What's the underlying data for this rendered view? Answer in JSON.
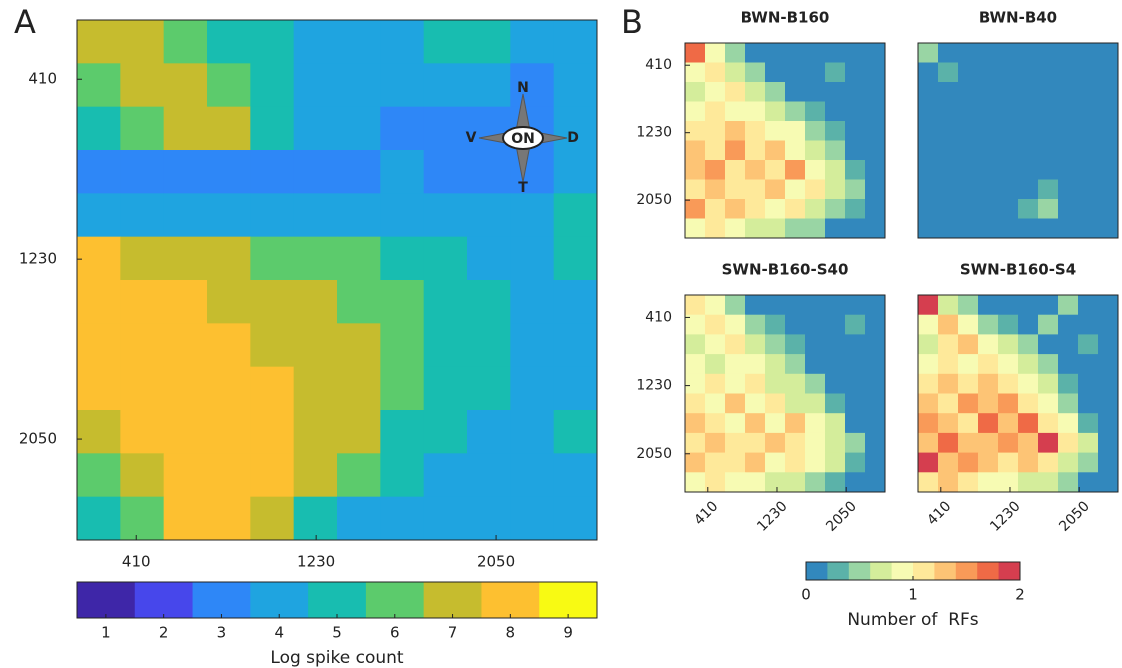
{
  "chart_data": [
    {
      "type": "heatmap",
      "panel_label": "A",
      "xlim": [
        140,
        2510
      ],
      "ylim": [
        140,
        2510
      ],
      "xticks": [
        410,
        1230,
        2050
      ],
      "yticks": [
        410,
        1230,
        2050
      ],
      "values": [
        [
          7,
          7,
          6,
          5,
          5,
          4,
          4,
          4,
          5,
          5,
          4,
          4
        ],
        [
          6,
          7,
          7,
          6,
          5,
          4,
          4,
          4,
          4,
          4,
          3,
          4
        ],
        [
          5,
          6,
          7,
          7,
          5,
          4,
          4,
          3,
          3,
          3,
          3,
          4
        ],
        [
          3,
          3,
          3,
          3,
          3,
          3,
          3,
          4,
          3,
          3,
          3,
          4
        ],
        [
          4,
          4,
          4,
          4,
          4,
          4,
          4,
          4,
          4,
          4,
          4,
          5
        ],
        [
          8,
          7,
          7,
          7,
          6,
          6,
          6,
          5,
          5,
          4,
          4,
          5
        ],
        [
          8,
          8,
          8,
          7,
          7,
          7,
          6,
          6,
          5,
          5,
          4,
          4
        ],
        [
          8,
          8,
          8,
          8,
          7,
          7,
          7,
          6,
          5,
          5,
          4,
          4
        ],
        [
          8,
          8,
          8,
          8,
          8,
          7,
          7,
          6,
          5,
          5,
          4,
          4
        ],
        [
          7,
          8,
          8,
          8,
          8,
          7,
          7,
          5,
          5,
          4,
          4,
          5
        ],
        [
          6,
          7,
          8,
          8,
          8,
          7,
          6,
          5,
          4,
          4,
          4,
          4
        ],
        [
          5,
          6,
          8,
          8,
          7,
          5,
          4,
          4,
          4,
          4,
          4,
          4
        ]
      ],
      "compass": {
        "north": "N",
        "south": "T",
        "west": "V",
        "east": "D",
        "center": "ON"
      },
      "colorbar": {
        "label": "Log spike count",
        "lim": [
          0.5,
          9.5
        ],
        "ticks": [
          1,
          2,
          3,
          4,
          5,
          6,
          7,
          8,
          9
        ],
        "colors": [
          "#3e26a8",
          "#4747eb",
          "#2e87f7",
          "#1fa4e0",
          "#18bdb0",
          "#5ccb6c",
          "#c6bc2e",
          "#fdc030",
          "#f8fa13"
        ]
      }
    },
    {
      "type": "heatmap",
      "panel_label": "B",
      "title": "BWN-B160",
      "xlim": [
        140,
        2510
      ],
      "ylim": [
        140,
        2510
      ],
      "yticks": [
        410,
        1230,
        2050
      ],
      "values": [
        [
          1.6,
          0.8,
          0.4,
          0,
          0,
          0,
          0,
          0,
          0,
          0
        ],
        [
          0.8,
          1,
          0.6,
          0.4,
          0,
          0,
          0,
          0.2,
          0,
          0
        ],
        [
          0.6,
          0.8,
          1,
          0.6,
          0.4,
          0,
          0,
          0,
          0,
          0
        ],
        [
          0.8,
          1,
          0.8,
          0.8,
          0.6,
          0.4,
          0.2,
          0,
          0,
          0
        ],
        [
          1,
          1,
          1.2,
          1,
          0.8,
          0.8,
          0.4,
          0.2,
          0,
          0
        ],
        [
          1.2,
          1,
          1.4,
          1,
          1.2,
          0.8,
          0.6,
          0.4,
          0,
          0
        ],
        [
          1.2,
          1.4,
          1,
          1.2,
          1,
          1.4,
          0.8,
          0.6,
          0.2,
          0
        ],
        [
          1,
          1.2,
          1,
          1,
          1.2,
          0.8,
          1,
          0.6,
          0.4,
          0
        ],
        [
          1.4,
          1,
          1.2,
          1,
          0.8,
          1,
          0.6,
          0.4,
          0.2,
          0
        ],
        [
          0.8,
          1,
          0.8,
          0.6,
          0.6,
          0.4,
          0.4,
          0,
          0,
          0
        ]
      ]
    },
    {
      "type": "heatmap",
      "title": "BWN-B40",
      "xlim": [
        140,
        2510
      ],
      "ylim": [
        140,
        2510
      ],
      "values": [
        [
          0.4,
          0,
          0,
          0,
          0,
          0,
          0,
          0,
          0,
          0
        ],
        [
          0,
          0.2,
          0,
          0,
          0,
          0,
          0,
          0,
          0,
          0
        ],
        [
          0,
          0,
          0,
          0,
          0,
          0,
          0,
          0,
          0,
          0
        ],
        [
          0,
          0,
          0,
          0,
          0,
          0,
          0,
          0,
          0,
          0
        ],
        [
          0,
          0,
          0,
          0,
          0,
          0,
          0,
          0,
          0,
          0
        ],
        [
          0,
          0,
          0,
          0,
          0,
          0,
          0,
          0,
          0,
          0
        ],
        [
          0,
          0,
          0,
          0,
          0,
          0,
          0,
          0,
          0,
          0
        ],
        [
          0,
          0,
          0,
          0,
          0,
          0,
          0.2,
          0,
          0,
          0
        ],
        [
          0,
          0,
          0,
          0,
          0,
          0.2,
          0.4,
          0,
          0,
          0
        ],
        [
          0,
          0,
          0,
          0,
          0,
          0,
          0,
          0,
          0,
          0
        ]
      ]
    },
    {
      "type": "heatmap",
      "title": "SWN-B160-S40",
      "xlim": [
        140,
        2510
      ],
      "ylim": [
        140,
        2510
      ],
      "xticks": [
        410,
        1230,
        2050
      ],
      "yticks": [
        410,
        1230,
        2050
      ],
      "values": [
        [
          1,
          0.8,
          0.4,
          0,
          0,
          0,
          0,
          0,
          0,
          0
        ],
        [
          0.8,
          1,
          0.8,
          0.4,
          0.2,
          0,
          0,
          0,
          0.2,
          0
        ],
        [
          0.6,
          0.8,
          1,
          0.6,
          0.4,
          0.2,
          0,
          0,
          0,
          0
        ],
        [
          0.8,
          0.6,
          0.8,
          0.8,
          0.6,
          0.4,
          0,
          0,
          0,
          0
        ],
        [
          0.8,
          1,
          0.8,
          1,
          0.6,
          0.6,
          0.4,
          0,
          0,
          0
        ],
        [
          1,
          0.8,
          1.2,
          0.8,
          1,
          0.6,
          0.6,
          0.2,
          0,
          0
        ],
        [
          1.2,
          1,
          0.8,
          1.2,
          0.8,
          1.2,
          0.8,
          0.6,
          0,
          0
        ],
        [
          1,
          1.2,
          1,
          1,
          1.2,
          1,
          0.8,
          0.6,
          0.4,
          0
        ],
        [
          1.2,
          1,
          1,
          1.2,
          0.8,
          1,
          0.8,
          0.6,
          0.2,
          0
        ],
        [
          0.8,
          1,
          0.8,
          0.8,
          0.6,
          0.6,
          0.4,
          0.2,
          0,
          0
        ]
      ]
    },
    {
      "type": "heatmap",
      "title": "SWN-B160-S4",
      "xlim": [
        140,
        2510
      ],
      "ylim": [
        140,
        2510
      ],
      "xticks": [
        410,
        1230,
        2050
      ],
      "values": [
        [
          1.8,
          0.6,
          0.4,
          0,
          0,
          0,
          0,
          0.4,
          0,
          0
        ],
        [
          0.8,
          1.2,
          0.8,
          0.4,
          0.2,
          0,
          0.4,
          0,
          0,
          0
        ],
        [
          0.6,
          1,
          1.2,
          0.8,
          0.6,
          0.4,
          0,
          0,
          0.2,
          0
        ],
        [
          0.8,
          1,
          0.8,
          1,
          0.8,
          0.6,
          0.4,
          0,
          0,
          0
        ],
        [
          1,
          1.2,
          1,
          1.2,
          1,
          0.8,
          0.6,
          0.2,
          0,
          0
        ],
        [
          1.2,
          1,
          1.4,
          1.2,
          1.4,
          1,
          0.8,
          0.4,
          0,
          0
        ],
        [
          1.4,
          1.2,
          1,
          1.6,
          1.2,
          1.6,
          1,
          0.8,
          0.2,
          0
        ],
        [
          1.2,
          1.6,
          1.2,
          1.2,
          1.4,
          1.2,
          1.8,
          1,
          0.6,
          0
        ],
        [
          1.8,
          1.2,
          1.4,
          1.2,
          1,
          1.2,
          1,
          0.6,
          0.4,
          0
        ],
        [
          1,
          1.2,
          1,
          0.8,
          0.8,
          0.6,
          0.6,
          0.4,
          0,
          0
        ]
      ]
    }
  ],
  "shared_colorbar": {
    "label": "Number of  RFs",
    "lim": [
      0,
      2
    ],
    "ticks": [
      0,
      1,
      2
    ],
    "colors": [
      "#3288bd",
      "#5bb2a9",
      "#99d5a4",
      "#d4ed9b",
      "#f7fbb3",
      "#fee99a",
      "#fdc475",
      "#f99a58",
      "#ef6a46",
      "#d53e4f"
    ]
  }
}
